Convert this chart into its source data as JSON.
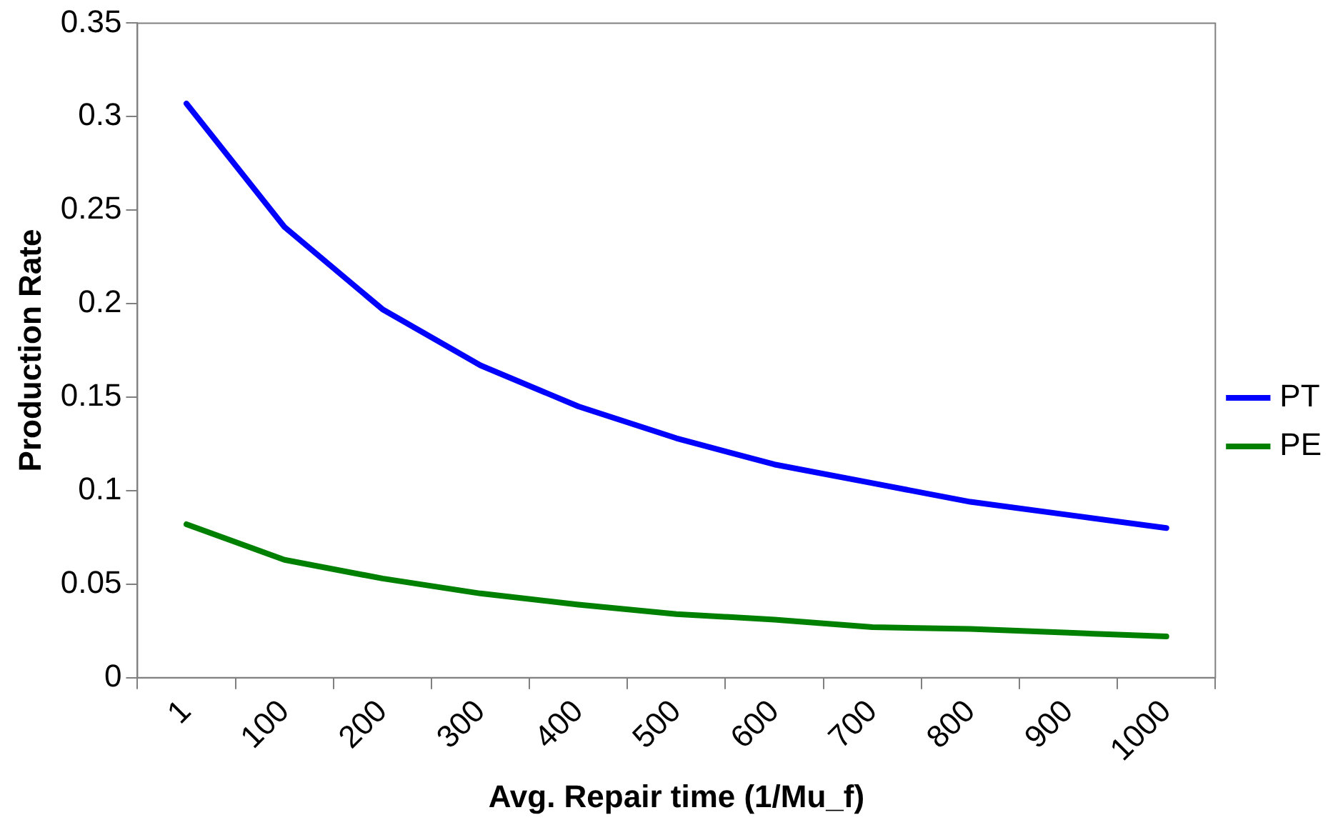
{
  "chart_data": {
    "type": "line",
    "xlabel": "Avg. Repair time (1/Mu_f)",
    "ylabel": "Production Rate",
    "categories": [
      "1",
      "100",
      "200",
      "300",
      "400",
      "500",
      "600",
      "700",
      "800",
      "900",
      "1000"
    ],
    "series": [
      {
        "name": "PT",
        "color": "#0000ff",
        "values": [
          0.307,
          0.241,
          0.197,
          0.167,
          0.145,
          0.128,
          0.114,
          0.104,
          0.094,
          0.087,
          0.08
        ]
      },
      {
        "name": "PE",
        "color": "#008000",
        "values": [
          0.082,
          0.063,
          0.053,
          0.045,
          0.039,
          0.034,
          0.031,
          0.027,
          0.026,
          0.024,
          0.022
        ]
      }
    ],
    "ylim": [
      0,
      0.35
    ],
    "yticks": [
      0,
      0.05,
      0.1,
      0.15,
      0.2,
      0.25,
      0.3,
      0.35
    ],
    "grid": false,
    "legend": "right",
    "marker": "none",
    "line_style": "solid"
  }
}
